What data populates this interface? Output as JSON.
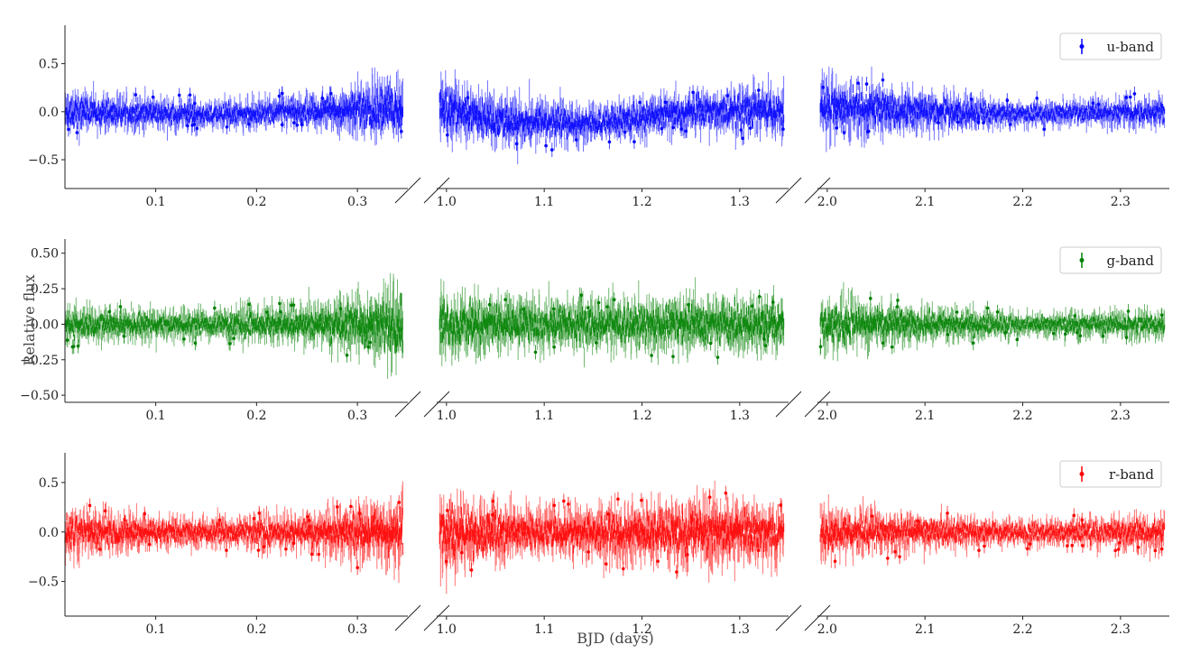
{
  "chart_data": {
    "type": "scatter",
    "ylabel": "Relative flux",
    "xlabel": "BJD (days)",
    "segments": [
      {
        "xlim": [
          0.01,
          0.35
        ],
        "xticks": [
          "0.1",
          "0.2",
          "0.3"
        ],
        "xtick_values": [
          0.1,
          0.2,
          0.3
        ]
      },
      {
        "xlim": [
          0.99,
          1.35
        ],
        "xticks": [
          "1.0",
          "1.1",
          "1.2",
          "1.3"
        ],
        "xtick_values": [
          1.0,
          1.1,
          1.2,
          1.3
        ]
      },
      {
        "xlim": [
          1.99,
          2.35
        ],
        "xticks": [
          "2.0",
          "2.1",
          "2.2",
          "2.3"
        ],
        "xtick_values": [
          2.0,
          2.1,
          2.2,
          2.3
        ]
      }
    ],
    "panels": [
      {
        "band": "u-band",
        "color": "#0000ff",
        "ylim": [
          -0.8,
          0.9
        ],
        "yticks": [
          "0.5",
          "0.0",
          "−0.5"
        ],
        "ytick_values": [
          0.5,
          0.0,
          -0.5
        ],
        "legend": "top-right",
        "amplitude": {
          "segment1": [
            [
              0.01,
              0.2
            ],
            [
              0.15,
              0.14
            ],
            [
              0.25,
              0.16
            ],
            [
              0.35,
              0.32
            ]
          ],
          "segment2": [
            [
              0.99,
              0.3
            ],
            [
              1.05,
              0.25
            ],
            [
              1.15,
              0.18
            ],
            [
              1.3,
              0.22
            ],
            [
              1.35,
              0.24
            ]
          ],
          "segment3": [
            [
              1.99,
              0.28
            ],
            [
              2.05,
              0.24
            ],
            [
              2.2,
              0.12
            ],
            [
              2.35,
              0.15
            ]
          ]
        },
        "trend": {
          "segment1": [
            [
              0.01,
              0.0
            ],
            [
              0.15,
              -0.03
            ],
            [
              0.25,
              0.0
            ],
            [
              0.35,
              0.05
            ]
          ],
          "segment2": [
            [
              0.99,
              0.05
            ],
            [
              1.05,
              -0.1
            ],
            [
              1.15,
              -0.12
            ],
            [
              1.25,
              0.0
            ],
            [
              1.35,
              0.02
            ]
          ],
          "segment3": [
            [
              1.99,
              0.05
            ],
            [
              2.05,
              0.02
            ],
            [
              2.2,
              -0.02
            ],
            [
              2.35,
              0.0
            ]
          ]
        }
      },
      {
        "band": "g-band",
        "color": "#008000",
        "ylim": [
          -0.55,
          0.6
        ],
        "yticks": [
          "0.50",
          "0.25",
          "0.00",
          "−0.25",
          "−0.50"
        ],
        "ytick_values": [
          0.5,
          0.25,
          0.0,
          -0.25,
          -0.5
        ],
        "legend": "top-right",
        "amplitude": {
          "segment1": [
            [
              0.01,
              0.12
            ],
            [
              0.15,
              0.1
            ],
            [
              0.25,
              0.13
            ],
            [
              0.35,
              0.25
            ]
          ],
          "segment2": [
            [
              0.99,
              0.22
            ],
            [
              1.1,
              0.16
            ],
            [
              1.3,
              0.18
            ],
            [
              1.35,
              0.17
            ]
          ],
          "segment3": [
            [
              1.99,
              0.18
            ],
            [
              2.1,
              0.12
            ],
            [
              2.2,
              0.08
            ],
            [
              2.35,
              0.1
            ]
          ]
        },
        "trend": {
          "segment1": [
            [
              0.01,
              0.0
            ],
            [
              0.35,
              0.0
            ]
          ],
          "segment2": [
            [
              0.99,
              0.0
            ],
            [
              1.35,
              0.0
            ]
          ],
          "segment3": [
            [
              1.99,
              0.0
            ],
            [
              2.35,
              0.0
            ]
          ]
        }
      },
      {
        "band": "r-band",
        "color": "#ff0000",
        "ylim": [
          -0.85,
          0.8
        ],
        "yticks": [
          "0.5",
          "0.0",
          "−0.5"
        ],
        "ytick_values": [
          0.5,
          0.0,
          -0.5
        ],
        "legend": "top-right",
        "amplitude": {
          "segment1": [
            [
              0.01,
              0.22
            ],
            [
              0.15,
              0.14
            ],
            [
              0.25,
              0.17
            ],
            [
              0.35,
              0.35
            ]
          ],
          "segment2": [
            [
              0.99,
              0.35
            ],
            [
              1.1,
              0.22
            ],
            [
              1.27,
              0.32
            ],
            [
              1.35,
              0.25
            ]
          ],
          "segment3": [
            [
              1.99,
              0.24
            ],
            [
              2.05,
              0.2
            ],
            [
              2.2,
              0.12
            ],
            [
              2.35,
              0.17
            ]
          ]
        },
        "trend": {
          "segment1": [
            [
              0.01,
              0.0
            ],
            [
              0.35,
              0.0
            ]
          ],
          "segment2": [
            [
              0.99,
              0.0
            ],
            [
              1.35,
              0.0
            ]
          ],
          "segment3": [
            [
              1.99,
              0.0
            ],
            [
              2.35,
              0.0
            ]
          ]
        }
      }
    ]
  }
}
